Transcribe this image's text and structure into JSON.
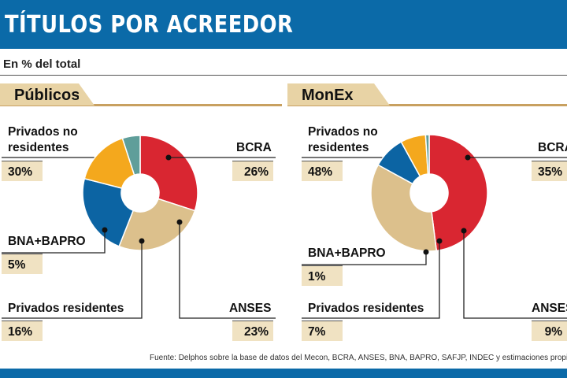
{
  "header": {
    "title": "TÍTULOS POR ACREEDOR",
    "subtitle": "En % del total",
    "source": "Fuente: Delphos sobre la base de datos del Mecon, BCRA, ANSES, BNA, BAPRO, SAFJP, INDEC y estimaciones propias"
  },
  "colors": {
    "Privados no residentes": "#d92631",
    "BCRA": "#dcc08c",
    "ANSES": "#0c64a3",
    "Privados residentes": "#f4a81d",
    "BNA+BAPRO": "#5f9e9a"
  },
  "chart_data": [
    {
      "type": "pie",
      "title": "Públicos",
      "slices": [
        {
          "label": "Privados no residentes",
          "label_lines": [
            "Privados no",
            "residentes"
          ],
          "value": 30,
          "text": "30%"
        },
        {
          "label": "BCRA",
          "label_lines": [
            "BCRA"
          ],
          "value": 26,
          "text": "26%"
        },
        {
          "label": "ANSES",
          "label_lines": [
            "ANSES"
          ],
          "value": 23,
          "text": "23%"
        },
        {
          "label": "Privados residentes",
          "label_lines": [
            "Privados residentes"
          ],
          "value": 16,
          "text": "16%"
        },
        {
          "label": "BNA+BAPRO",
          "label_lines": [
            "BNA+BAPRO"
          ],
          "value": 5,
          "text": "5%"
        }
      ]
    },
    {
      "type": "pie",
      "title": "MonEx",
      "slices": [
        {
          "label": "Privados no residentes",
          "label_lines": [
            "Privados no",
            "residentes"
          ],
          "value": 48,
          "text": "48%"
        },
        {
          "label": "BCRA",
          "label_lines": [
            "BCRA"
          ],
          "value": 35,
          "text": "35%"
        },
        {
          "label": "ANSES",
          "label_lines": [
            "ANSES"
          ],
          "value": 9,
          "text": "9%"
        },
        {
          "label": "Privados residentes",
          "label_lines": [
            "Privados residentes"
          ],
          "value": 7,
          "text": "7%"
        },
        {
          "label": "BNA+BAPRO",
          "label_lines": [
            "BNA+BAPRO"
          ],
          "value": 1,
          "text": "1%"
        }
      ]
    }
  ]
}
